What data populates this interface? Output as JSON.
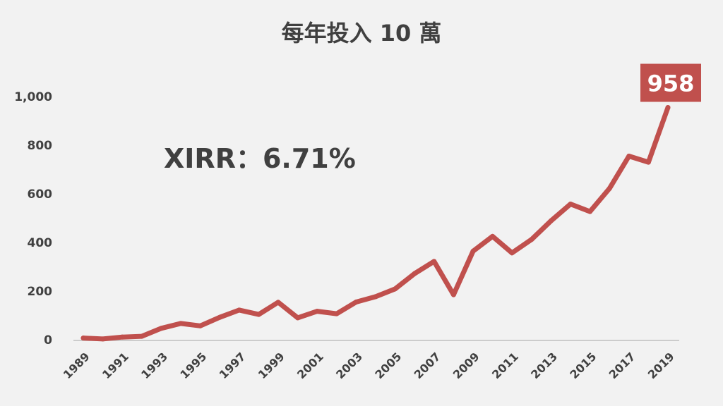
{
  "chart_data": {
    "type": "line",
    "title": "每年投入 10 萬",
    "annotation": "XIRR：6.71%",
    "callout": "958",
    "ylim": [
      0,
      1000
    ],
    "yticks": [
      "0",
      "200",
      "400",
      "600",
      "800",
      "1,000"
    ],
    "ytick_values": [
      0,
      200,
      400,
      600,
      800,
      1000
    ],
    "xtick_labels": [
      "1989",
      "1991",
      "1993",
      "1995",
      "1997",
      "1999",
      "2001",
      "2003",
      "2005",
      "2007",
      "2009",
      "2011",
      "2013",
      "2015",
      "2017",
      "2019"
    ],
    "x": [
      1989,
      1990,
      1991,
      1992,
      1993,
      1994,
      1995,
      1996,
      1997,
      1998,
      1999,
      2000,
      2001,
      2002,
      2003,
      2004,
      2005,
      2006,
      2007,
      2008,
      2009,
      2010,
      2011,
      2012,
      2013,
      2014,
      2015,
      2016,
      2017,
      2018,
      2019
    ],
    "series": [
      {
        "values": [
          10,
          6,
          14,
          17,
          50,
          70,
          60,
          95,
          125,
          107,
          157,
          93,
          120,
          110,
          158,
          180,
          212,
          275,
          325,
          188,
          367,
          428,
          360,
          415,
          492,
          561,
          530,
          625,
          758,
          733,
          958
        ]
      }
    ],
    "grid": false,
    "colors": {
      "line": "#c0504d",
      "callout_bg": "#c0504d",
      "text": "#404040",
      "background": "#f2f2f2",
      "axis": "#bfbfbf"
    }
  }
}
